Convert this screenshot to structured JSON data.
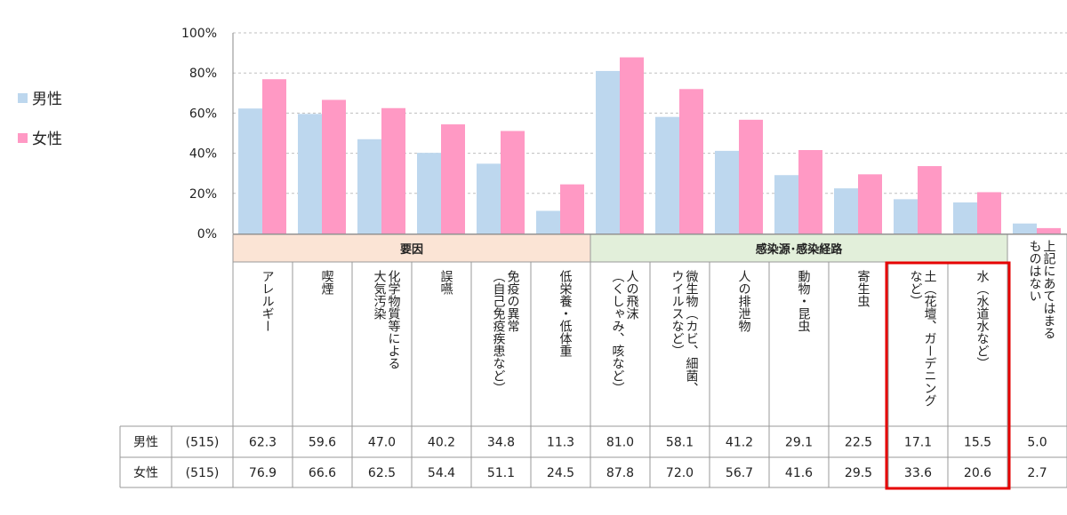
{
  "legend": {
    "male": "男性",
    "female": "女性"
  },
  "chart_data": {
    "type": "bar",
    "title": "",
    "ylim": [
      0,
      100
    ],
    "yticks": [
      "0%",
      "20%",
      "40%",
      "60%",
      "80%",
      "100%"
    ],
    "grid": "dashed horizontal",
    "legend_placement": "left",
    "groups": [
      {
        "label": "要因",
        "color": "#fbe4d5",
        "span": [
          0,
          5
        ]
      },
      {
        "label": "感染源･感染経路",
        "color": "#e2efda",
        "span": [
          6,
          12
        ]
      }
    ],
    "categories": [
      "アレルギー",
      "喫煙",
      "化学物質等による大気汚染",
      "誤嚥",
      "免疫の異常（自己免疫疾患など）",
      "低栄養・低体重",
      "人の飛沫（くしゃみ、咳など）",
      "微生物（カビ、細菌、ウイルスなど）",
      "人の排泄物",
      "動物・昆虫",
      "寄生虫",
      "土（花壇、ガーデニングなど）",
      "水（水道水など）",
      "上記にあてはまるものはない"
    ],
    "category_lines": [
      [
        "アレルギー"
      ],
      [
        "喫煙"
      ],
      [
        "化学物質等による",
        "大気汚染"
      ],
      [
        "誤嚥"
      ],
      [
        "免疫の異常",
        "（自己免疫疾患など）"
      ],
      [
        "低栄養・低体重"
      ],
      [
        "人の飛沫",
        "（くしゃみ、咳など）"
      ],
      [
        "微生物（カビ、細菌、",
        "ウイルスなど）"
      ],
      [
        "人の排泄物"
      ],
      [
        "動物・昆虫"
      ],
      [
        "寄生虫"
      ],
      [
        "土（花壇、ガーデニング",
        "など）"
      ],
      [
        "水（水道水など）"
      ],
      [
        "上記にあてはまる",
        "ものはない"
      ]
    ],
    "series": [
      {
        "name": "男性",
        "n": "(515)",
        "color": "#bdd7ee",
        "values": [
          62.3,
          59.6,
          47.0,
          40.2,
          34.8,
          11.3,
          81.0,
          58.1,
          41.2,
          29.1,
          22.5,
          17.1,
          15.5,
          5.0
        ],
        "labels": [
          "62.3",
          "59.6",
          "47.0",
          "40.2",
          "34.8",
          "11.3",
          "81.0",
          "58.1",
          "41.2",
          "29.1",
          "22.5",
          "17.1",
          "15.5",
          "5.0"
        ]
      },
      {
        "name": "女性",
        "n": "(515)",
        "color": "#ff99c4",
        "values": [
          76.9,
          66.6,
          62.5,
          54.4,
          51.1,
          24.5,
          87.8,
          72.0,
          56.7,
          41.6,
          29.5,
          33.6,
          20.6,
          2.7
        ],
        "labels": [
          "76.9",
          "66.6",
          "62.5",
          "54.4",
          "51.1",
          "24.5",
          "87.8",
          "72.0",
          "56.7",
          "41.6",
          "29.5",
          "33.6",
          "20.6",
          "2.7"
        ]
      }
    ],
    "highlight": {
      "categories": [
        11,
        12
      ],
      "color": "#e60000"
    }
  }
}
